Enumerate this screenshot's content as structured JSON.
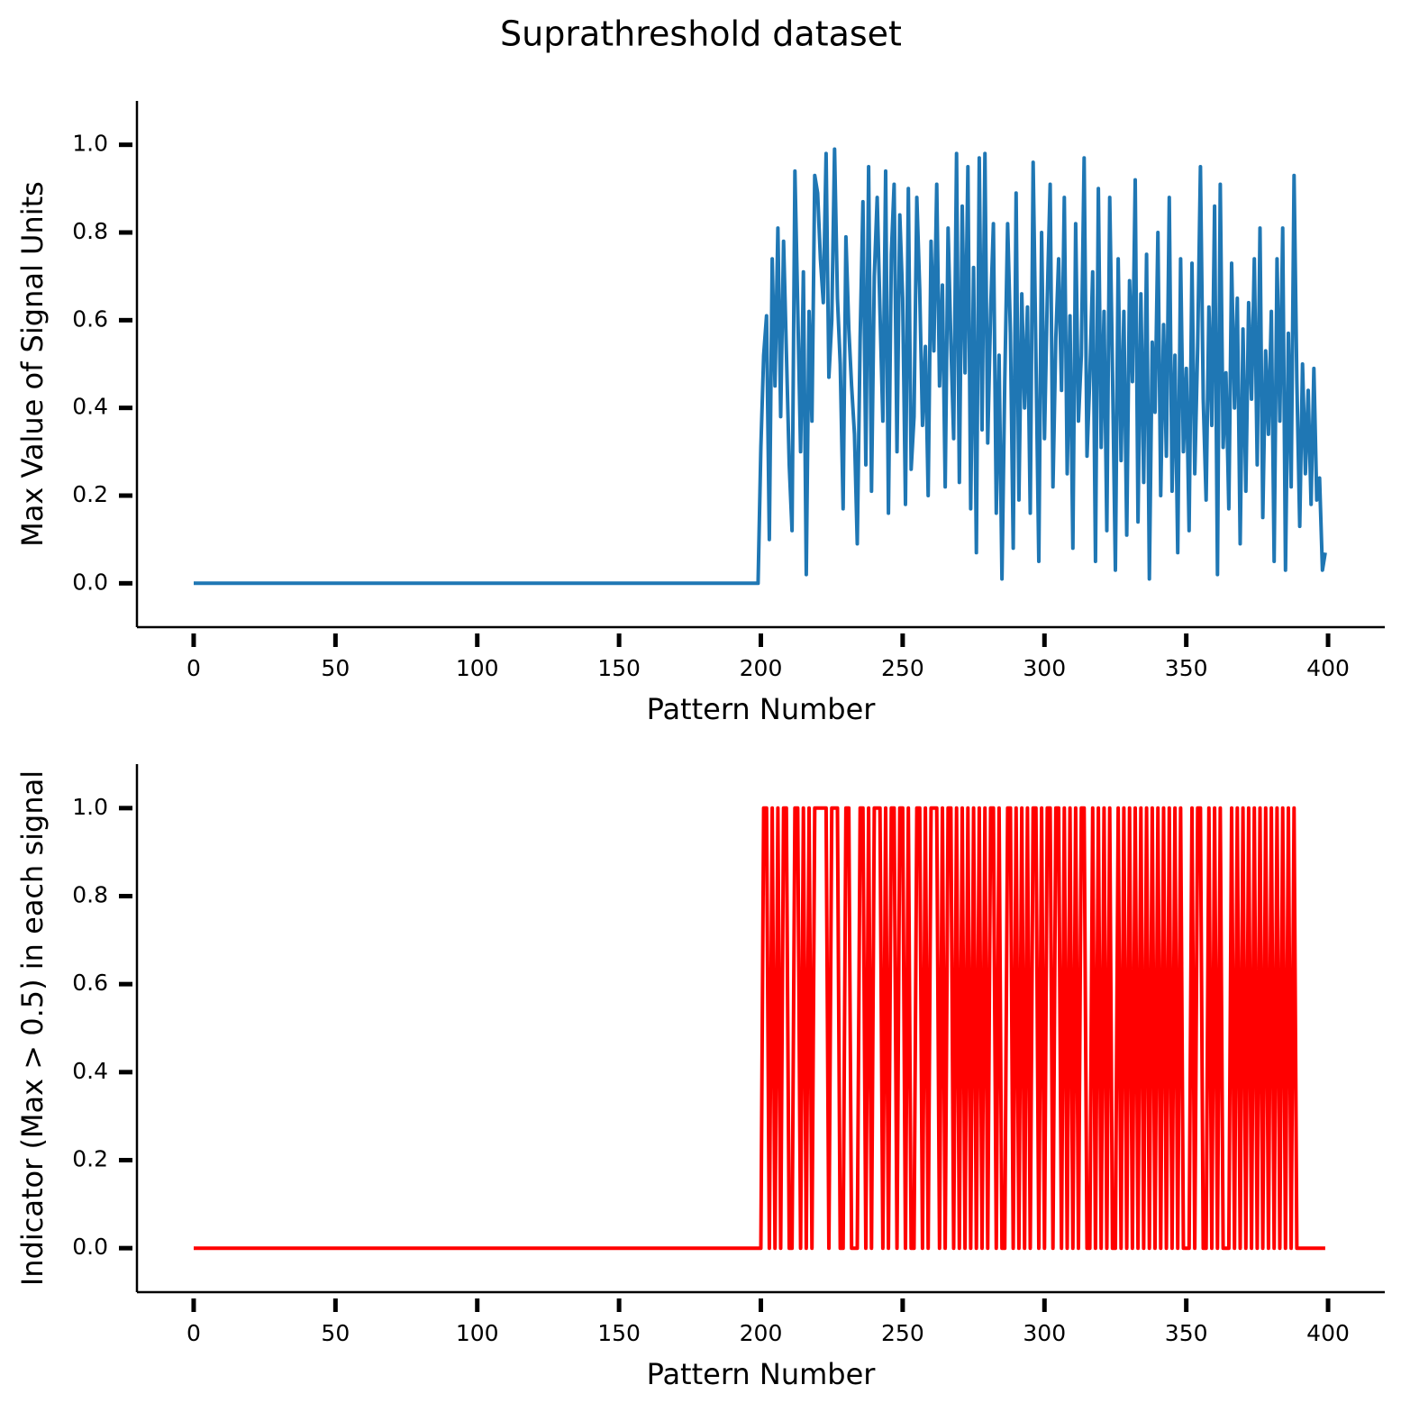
{
  "title": "Suprathreshold dataset",
  "chart_data": [
    {
      "type": "line",
      "xlabel": "Pattern Number",
      "ylabel": "Max Value of Signal Units",
      "color": "#1f77b4",
      "xlim": [
        -20,
        420
      ],
      "ylim": [
        -0.1,
        1.1
      ],
      "xticks": [
        0,
        50,
        100,
        150,
        200,
        250,
        300,
        350,
        400
      ],
      "yticks": [
        {
          "value": 0,
          "label": "0.0"
        },
        0.2,
        0.4,
        0.6,
        0.8,
        {
          "value": 1,
          "label": "1.0"
        }
      ],
      "x": [
        0,
        199,
        200,
        201,
        202,
        203,
        204,
        205,
        206,
        207,
        208,
        209,
        210,
        211,
        212,
        213,
        214,
        215,
        216,
        217,
        218,
        219,
        220,
        221,
        222,
        223,
        224,
        225,
        226,
        227,
        228,
        229,
        230,
        231,
        232,
        233,
        234,
        235,
        236,
        237,
        238,
        239,
        240,
        241,
        242,
        243,
        244,
        245,
        246,
        247,
        248,
        249,
        250,
        251,
        252,
        253,
        254,
        255,
        256,
        257,
        258,
        259,
        260,
        261,
        262,
        263,
        264,
        265,
        266,
        267,
        268,
        269,
        270,
        271,
        272,
        273,
        274,
        275,
        276,
        277,
        278,
        279,
        280,
        281,
        282,
        283,
        284,
        285,
        286,
        287,
        288,
        289,
        290,
        291,
        292,
        293,
        294,
        295,
        296,
        297,
        298,
        299,
        300,
        301,
        302,
        303,
        304,
        305,
        306,
        307,
        308,
        309,
        310,
        311,
        312,
        313,
        314,
        315,
        316,
        317,
        318,
        319,
        320,
        321,
        322,
        323,
        324,
        325,
        326,
        327,
        328,
        329,
        330,
        331,
        332,
        333,
        334,
        335,
        336,
        337,
        338,
        339,
        340,
        341,
        342,
        343,
        344,
        345,
        346,
        347,
        348,
        349,
        350,
        351,
        352,
        353,
        354,
        355,
        356,
        357,
        358,
        359,
        360,
        361,
        362,
        363,
        364,
        365,
        366,
        367,
        368,
        369,
        370,
        371,
        372,
        373,
        374,
        375,
        376,
        377,
        378,
        379,
        380,
        381,
        382,
        383,
        384,
        385,
        386,
        387,
        388,
        389,
        390,
        391,
        392,
        393,
        394,
        395,
        396,
        397,
        398,
        399
      ],
      "values": [
        0,
        0,
        0.31,
        0.52,
        0.61,
        0.1,
        0.74,
        0.45,
        0.81,
        0.38,
        0.78,
        0.53,
        0.27,
        0.12,
        0.94,
        0.63,
        0.3,
        0.71,
        0.02,
        0.62,
        0.37,
        0.93,
        0.89,
        0.74,
        0.64,
        0.98,
        0.47,
        0.6,
        0.99,
        0.65,
        0.5,
        0.17,
        0.79,
        0.58,
        0.45,
        0.34,
        0.09,
        0.56,
        0.87,
        0.27,
        0.95,
        0.21,
        0.7,
        0.88,
        0.62,
        0.37,
        0.94,
        0.16,
        0.75,
        0.91,
        0.3,
        0.84,
        0.65,
        0.18,
        0.9,
        0.26,
        0.38,
        0.88,
        0.67,
        0.36,
        0.54,
        0.2,
        0.78,
        0.53,
        0.91,
        0.45,
        0.68,
        0.22,
        0.81,
        0.55,
        0.33,
        0.98,
        0.23,
        0.86,
        0.48,
        0.95,
        0.17,
        0.72,
        0.07,
        0.97,
        0.35,
        0.98,
        0.32,
        0.62,
        0.82,
        0.16,
        0.52,
        0.01,
        0.46,
        0.82,
        0.57,
        0.08,
        0.89,
        0.19,
        0.66,
        0.4,
        0.63,
        0.16,
        0.96,
        0.52,
        0.05,
        0.8,
        0.33,
        0.65,
        0.91,
        0.22,
        0.56,
        0.74,
        0.44,
        0.88,
        0.25,
        0.61,
        0.08,
        0.82,
        0.37,
        0.52,
        0.97,
        0.29,
        0.47,
        0.71,
        0.05,
        0.9,
        0.31,
        0.62,
        0.12,
        0.88,
        0.48,
        0.03,
        0.74,
        0.28,
        0.62,
        0.11,
        0.69,
        0.46,
        0.92,
        0.14,
        0.66,
        0.23,
        0.75,
        0.01,
        0.55,
        0.39,
        0.8,
        0.2,
        0.59,
        0.29,
        0.88,
        0.21,
        0.52,
        0.07,
        0.74,
        0.3,
        0.49,
        0.12,
        0.73,
        0.25,
        0.54,
        0.95,
        0.42,
        0.19,
        0.63,
        0.36,
        0.86,
        0.02,
        0.91,
        0.31,
        0.48,
        0.17,
        0.73,
        0.4,
        0.65,
        0.09,
        0.58,
        0.21,
        0.64,
        0.42,
        0.74,
        0.27,
        0.81,
        0.15,
        0.53,
        0.34,
        0.62,
        0.05,
        0.74,
        0.37,
        0.81,
        0.03,
        0.57,
        0.22,
        0.93,
        0.46,
        0.13,
        0.5,
        0.25,
        0.44,
        0.18,
        0.49,
        0.19,
        0.24,
        0.03,
        0.07
      ]
    },
    {
      "type": "line",
      "xlabel": "Pattern Number",
      "ylabel": "Indicator (Max > 0.5) in each signal",
      "color": "#ff0000",
      "xlim": [
        -20,
        420
      ],
      "ylim": [
        -0.1,
        1.1
      ],
      "xticks": [
        0,
        50,
        100,
        150,
        200,
        250,
        300,
        350,
        400
      ],
      "yticks": [
        {
          "value": 0,
          "label": "0.0"
        },
        0.2,
        0.4,
        0.6,
        0.8,
        {
          "value": 1,
          "label": "1.0"
        }
      ],
      "x": [
        0,
        199,
        200,
        201,
        202,
        203,
        204,
        205,
        206,
        207,
        208,
        209,
        210,
        211,
        212,
        213,
        214,
        215,
        216,
        217,
        218,
        219,
        220,
        221,
        222,
        223,
        224,
        225,
        226,
        227,
        228,
        229,
        230,
        231,
        232,
        233,
        234,
        235,
        236,
        237,
        238,
        239,
        240,
        241,
        242,
        243,
        244,
        245,
        246,
        247,
        248,
        249,
        250,
        251,
        252,
        253,
        254,
        255,
        256,
        257,
        258,
        259,
        260,
        261,
        262,
        263,
        264,
        265,
        266,
        267,
        268,
        269,
        270,
        271,
        272,
        273,
        274,
        275,
        276,
        277,
        278,
        279,
        280,
        281,
        282,
        283,
        284,
        285,
        286,
        287,
        288,
        289,
        290,
        291,
        292,
        293,
        294,
        295,
        296,
        297,
        298,
        299,
        300,
        301,
        302,
        303,
        304,
        305,
        306,
        307,
        308,
        309,
        310,
        311,
        312,
        313,
        314,
        315,
        316,
        317,
        318,
        319,
        320,
        321,
        322,
        323,
        324,
        325,
        326,
        327,
        328,
        329,
        330,
        331,
        332,
        333,
        334,
        335,
        336,
        337,
        338,
        339,
        340,
        341,
        342,
        343,
        344,
        345,
        346,
        347,
        348,
        349,
        350,
        351,
        352,
        353,
        354,
        355,
        356,
        357,
        358,
        359,
        360,
        361,
        362,
        363,
        364,
        365,
        366,
        367,
        368,
        369,
        370,
        371,
        372,
        373,
        374,
        375,
        376,
        377,
        378,
        379,
        380,
        381,
        382,
        383,
        384,
        385,
        386,
        387,
        388,
        389,
        390,
        391,
        392,
        393,
        394,
        395,
        396,
        397,
        398,
        399
      ],
      "values": [
        0,
        0,
        0,
        1,
        1,
        0,
        1,
        0,
        1,
        0,
        1,
        1,
        0,
        0,
        1,
        1,
        0,
        1,
        0,
        1,
        0,
        1,
        1,
        1,
        1,
        1,
        0,
        1,
        1,
        1,
        0,
        0,
        1,
        1,
        0,
        0,
        0,
        1,
        1,
        0,
        1,
        0,
        1,
        1,
        1,
        0,
        1,
        0,
        1,
        1,
        0,
        1,
        1,
        0,
        1,
        0,
        0,
        1,
        1,
        0,
        1,
        0,
        1,
        1,
        1,
        0,
        1,
        0,
        1,
        1,
        0,
        1,
        0,
        1,
        0,
        1,
        0,
        1,
        0,
        1,
        0,
        1,
        0,
        1,
        1,
        0,
        1,
        0,
        0,
        1,
        1,
        0,
        1,
        0,
        1,
        0,
        1,
        0,
        1,
        1,
        0,
        1,
        0,
        1,
        1,
        0,
        1,
        1,
        0,
        1,
        0,
        1,
        0,
        1,
        0,
        1,
        1,
        0,
        0,
        1,
        0,
        1,
        0,
        1,
        0,
        1,
        0,
        0,
        1,
        0,
        1,
        0,
        1,
        0,
        1,
        0,
        1,
        0,
        1,
        0,
        1,
        0,
        1,
        0,
        1,
        0,
        1,
        0,
        1,
        0,
        1,
        0,
        0,
        0,
        1,
        0,
        1,
        1,
        0,
        0,
        1,
        0,
        1,
        0,
        1,
        0,
        0,
        0,
        1,
        0,
        1,
        0,
        1,
        0,
        1,
        0,
        1,
        0,
        1,
        0,
        1,
        0,
        1,
        0,
        1,
        0,
        1,
        0,
        1,
        0,
        1,
        0,
        0,
        0,
        0,
        0,
        0,
        0,
        0,
        0,
        0,
        0
      ]
    }
  ]
}
